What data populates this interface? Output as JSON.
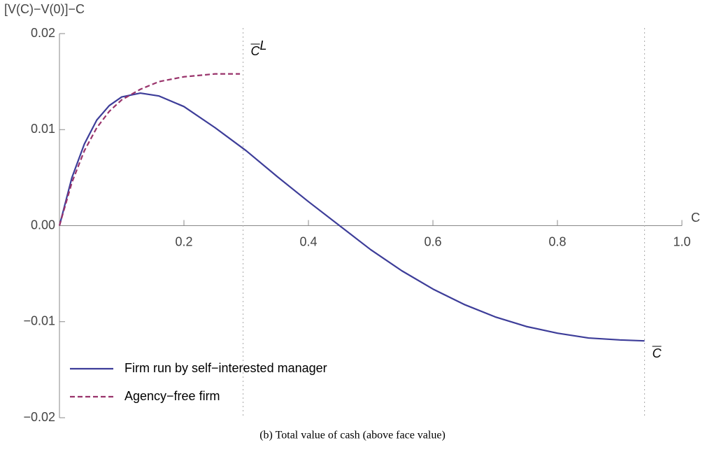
{
  "chart_data": {
    "type": "line",
    "ylabel": "[V(C)−V(0)]−C",
    "xlabel": "C",
    "caption": "(b) Total value of cash (above face value)",
    "xlim": [
      0,
      1
    ],
    "ylim": [
      -0.02,
      0.02
    ],
    "xticks": [
      0.2,
      0.4,
      0.6,
      0.8,
      {
        "value": 1,
        "label": "1.0"
      }
    ],
    "yticks": [
      {
        "value": -0.02,
        "label": "−0.02"
      },
      {
        "value": -0.01,
        "label": "−0.01"
      },
      {
        "value": 0,
        "label": "0.00"
      },
      0.01,
      {
        "value": 0.02,
        "label": "0.02"
      }
    ],
    "series": [
      {
        "name": "Firm run by self−interested manager",
        "color": "#3d3d99",
        "dash": false,
        "x": [
          0,
          0.02,
          0.04,
          0.06,
          0.08,
          0.1,
          0.13,
          0.16,
          0.2,
          0.25,
          0.3,
          0.35,
          0.4,
          0.45,
          0.5,
          0.55,
          0.6,
          0.65,
          0.7,
          0.75,
          0.8,
          0.85,
          0.9,
          0.94
        ],
        "values": [
          0,
          0.005,
          0.0085,
          0.011,
          0.0125,
          0.0134,
          0.0138,
          0.0135,
          0.0124,
          0.0102,
          0.0078,
          0.0051,
          0.0025,
          0,
          -0.0025,
          -0.0047,
          -0.0066,
          -0.0082,
          -0.0095,
          -0.0105,
          -0.0112,
          -0.0117,
          -0.0119,
          -0.012
        ]
      },
      {
        "name": "Agency−free firm",
        "color": "#99336b",
        "dash": true,
        "x": [
          0,
          0.02,
          0.04,
          0.06,
          0.08,
          0.1,
          0.13,
          0.16,
          0.2,
          0.25,
          0.29
        ],
        "values": [
          0,
          0.0045,
          0.0078,
          0.0102,
          0.0119,
          0.0131,
          0.0142,
          0.015,
          0.0155,
          0.0158,
          0.0158
        ]
      }
    ],
    "vlines": [
      {
        "x": 0.295,
        "label": "C",
        "sup": "L"
      },
      {
        "x": 0.94,
        "label": "C"
      }
    ]
  }
}
